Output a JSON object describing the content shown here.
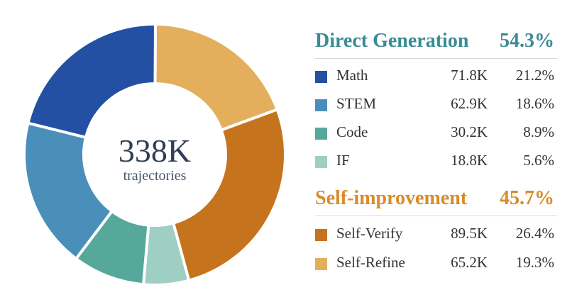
{
  "chart_data": {
    "type": "pie",
    "center": {
      "total": "338K",
      "label": "trajectories"
    },
    "groups": [
      {
        "name": "Direct Generation",
        "percent": "54.3%",
        "color": "#3a8b95",
        "items": [
          {
            "label": "Math",
            "count": "71.8K",
            "percent_label": "21.2%",
            "value": 21.2,
            "color": "#2350a3"
          },
          {
            "label": "STEM",
            "count": "62.9K",
            "percent_label": "18.6%",
            "value": 18.6,
            "color": "#4a8fba"
          },
          {
            "label": "Code",
            "count": "30.2K",
            "percent_label": "8.9%",
            "value": 8.9,
            "color": "#55a89a"
          },
          {
            "label": "IF",
            "count": "18.8K",
            "percent_label": "5.6%",
            "value": 5.6,
            "color": "#9fcfc4"
          }
        ]
      },
      {
        "name": "Self-improvement",
        "percent": "45.7%",
        "color": "#d98c2a",
        "items": [
          {
            "label": "Self-Verify",
            "count": "89.5K",
            "percent_label": "26.4%",
            "value": 26.4,
            "color": "#c6731e"
          },
          {
            "label": "Self-Refine",
            "count": "65.2K",
            "percent_label": "19.3%",
            "value": 19.3,
            "color": "#e3af5d"
          }
        ]
      }
    ]
  }
}
